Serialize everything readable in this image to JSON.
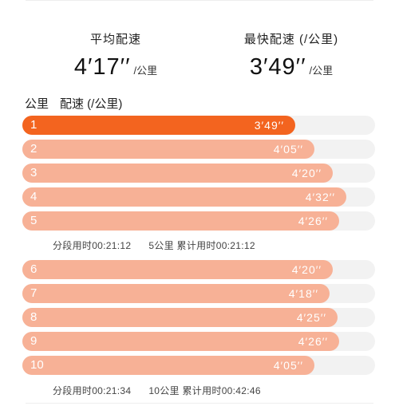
{
  "stats": {
    "avg": {
      "label": "平均配速",
      "value": "4′17′′",
      "unit": "/公里"
    },
    "best": {
      "label": "最快配速 (/公里)",
      "value": "3′49′′",
      "unit": "/公里"
    }
  },
  "table_header": {
    "col_km": "公里",
    "col_pace": "配速 (/公里)"
  },
  "segments": [
    {
      "rows": [
        {
          "km": "1",
          "pace": "3′49′′",
          "fraction": 0.774,
          "best": true
        },
        {
          "km": "2",
          "pace": "4′05′′",
          "fraction": 0.828,
          "best": false
        },
        {
          "km": "3",
          "pace": "4′20′′",
          "fraction": 0.879,
          "best": false
        },
        {
          "km": "4",
          "pace": "4′32′′",
          "fraction": 0.919,
          "best": false
        },
        {
          "km": "5",
          "pace": "4′26′′",
          "fraction": 0.899,
          "best": false
        }
      ],
      "split_time": "分段用时00:21:12",
      "cumulative": "5公里  累计用时00:21:12"
    },
    {
      "rows": [
        {
          "km": "6",
          "pace": "4′20′′",
          "fraction": 0.879,
          "best": false
        },
        {
          "km": "7",
          "pace": "4′18′′",
          "fraction": 0.871,
          "best": false
        },
        {
          "km": "8",
          "pace": "4′25′′",
          "fraction": 0.894,
          "best": false
        },
        {
          "km": "9",
          "pace": "4′26′′",
          "fraction": 0.899,
          "best": false
        },
        {
          "km": "10",
          "pace": "4′05′′",
          "fraction": 0.828,
          "best": false
        }
      ],
      "split_time": "分段用时00:21:34",
      "cumulative": "10公里  累计用时00:42:46"
    }
  ],
  "colors": {
    "best_bar": "#f3641f",
    "bar": "#f7b196",
    "track": "#f2f2f2"
  }
}
